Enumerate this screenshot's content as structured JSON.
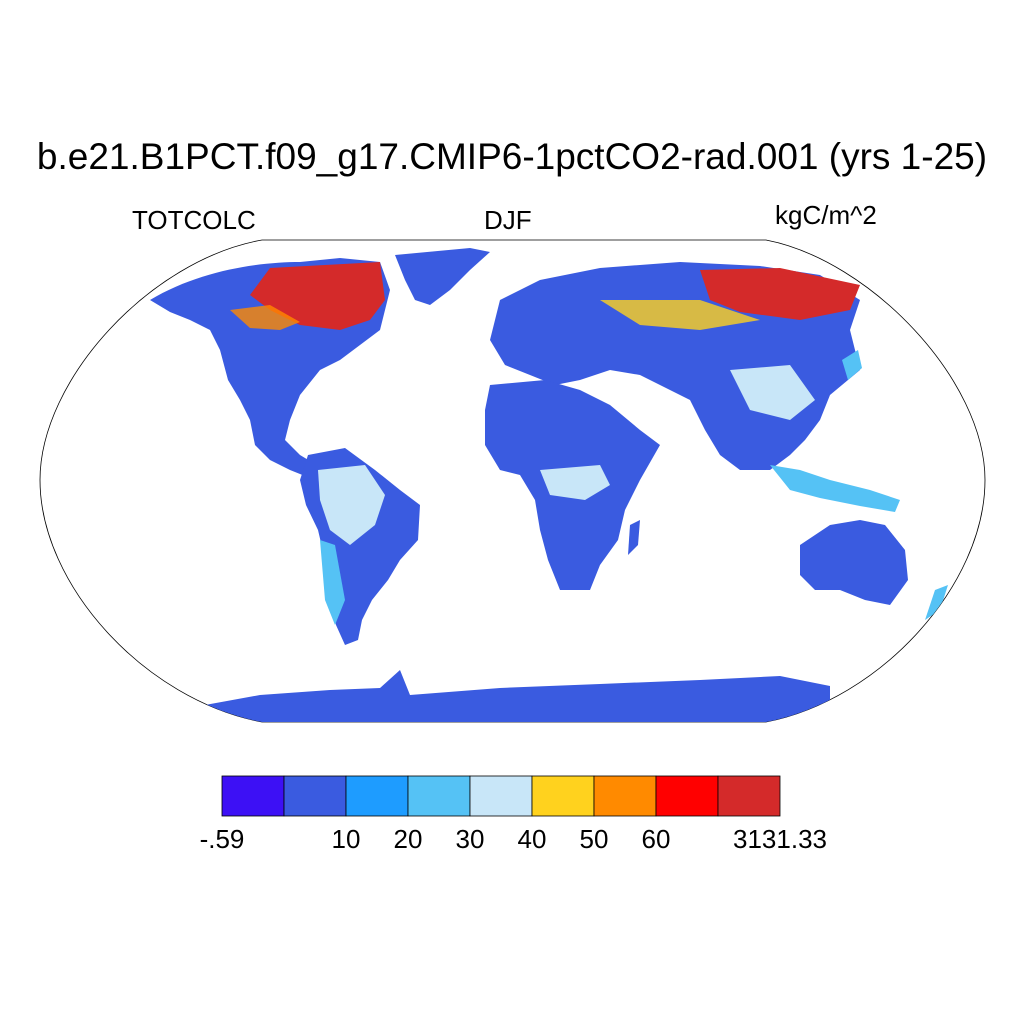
{
  "title": "b.e21.B1PCT.f09_g17.CMIP6-1pctCO2-rad.001 (yrs 1-25)",
  "variable": "TOTCOLC",
  "season": "DJF",
  "units": "kgC/m^2",
  "colorbar": {
    "labels": [
      "-.59",
      "10",
      "20",
      "30",
      "40",
      "50",
      "60",
      "3131.33"
    ],
    "colors": [
      "#3d10f5",
      "#3a5be0",
      "#1e9cff",
      "#55c2f5",
      "#c8e6f8",
      "#ffd21e",
      "#ff8a00",
      "#ff0000",
      "#d42a2a"
    ]
  },
  "legend_colors": {
    "ocean": "#ffffff",
    "coast": "#000000"
  }
}
